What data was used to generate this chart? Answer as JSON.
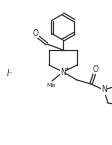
{
  "bg_color": "#ffffff",
  "line_color": "#2a2a2a",
  "figsize": [
    1.13,
    1.45
  ],
  "dpi": 100,
  "iodide_label": "I⁻",
  "N_label": "N",
  "N_plus": "+",
  "O_label": "O",
  "methyl_label": "Me",
  "amide_N_label": "N"
}
